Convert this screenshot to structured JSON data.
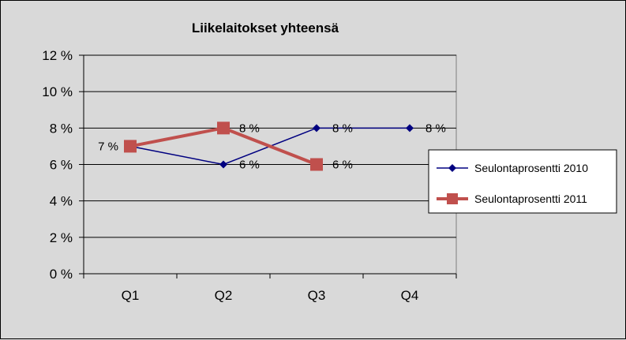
{
  "chart_data": {
    "type": "line",
    "title": "Liikelaitokset yhteensä",
    "xlabel": "",
    "ylabel": "",
    "categories": [
      "Q1",
      "Q2",
      "Q3",
      "Q4"
    ],
    "ylim": [
      0,
      12
    ],
    "ytick_labels": [
      "0 %",
      "2 %",
      "4 %",
      "6 %",
      "8 %",
      "10 %",
      "12 %"
    ],
    "grid": true,
    "legend_position": "right",
    "series": [
      {
        "name": "Seulontaprosentti 2010",
        "values": [
          7,
          6,
          8,
          8
        ],
        "data_labels": [
          "",
          "6 %",
          "8 %",
          "8 %"
        ],
        "color": "#000080",
        "marker": "diamond"
      },
      {
        "name": "Seulontaprosentti 2011",
        "values": [
          7,
          8,
          6,
          null
        ],
        "data_labels": [
          "7 %",
          "8 %",
          "6 %",
          ""
        ],
        "color": "#c0504d",
        "marker": "square"
      }
    ]
  }
}
